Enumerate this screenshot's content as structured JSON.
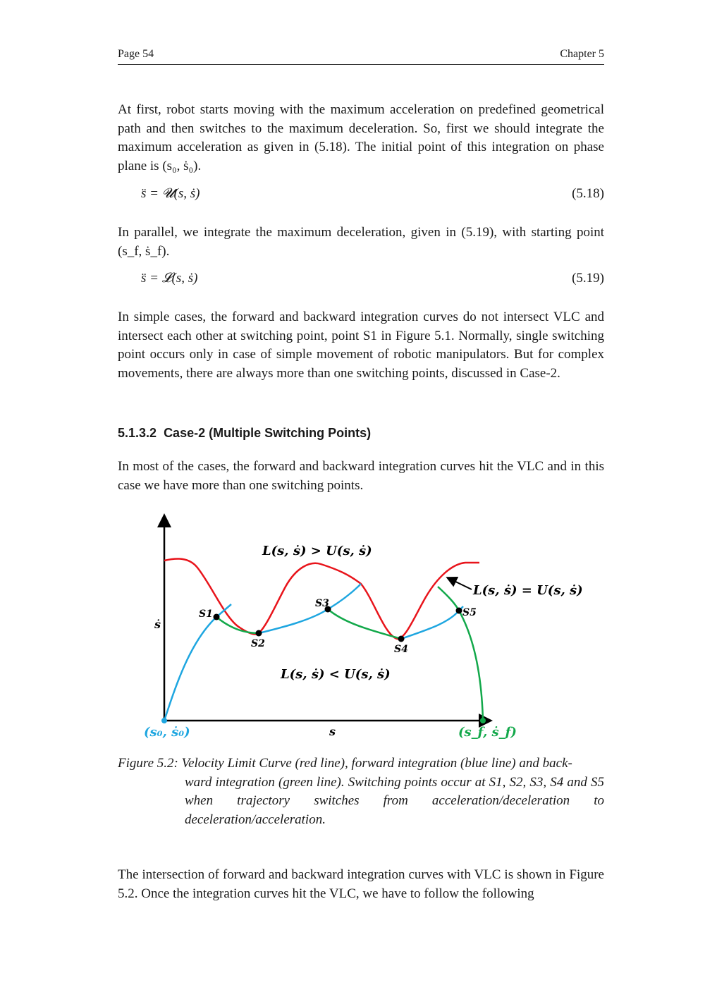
{
  "header": {
    "left": "Page 54",
    "right": "Chapter 5"
  },
  "paragraphs": [
    "At first, robot starts moving with the maximum acceleration on predefined geometrical path and then switches to the maximum deceleration. So, first we should integrate the maximum acceleration as given in (5.18). The initial point of this integration on phase plane is (s₀, ṡ₀).",
    "In parallel, we integrate the maximum deceleration, given in (5.19), with starting point (s_f, ṡ_f).",
    "In simple cases, the forward and backward integration curves do not intersect VLC and intersect each other at switching point, point S1 in Figure 5.1. Normally, single switching point occurs only in case of simple movement of robotic manipulators. But for complex movements, there are always more than one switching points, discussed in Case-2.",
    "In most of the cases, the forward and backward integration curves hit the VLC and in this case we have more than one switching points.",
    "The intersection of forward and backward integration curves with VLC is shown in Figure 5.2. Once the integration curves hit the VLC, we have to follow the following"
  ],
  "equations": [
    {
      "text": "s̈ = 𝓤(s, ṡ)",
      "number": "(5.18)"
    },
    {
      "text": "s̈ = 𝓛(s, ṡ)",
      "number": "(5.19)"
    }
  ],
  "section": {
    "number": "5.1.3.2",
    "title": "Case-2 (Multiple Switching Points)"
  },
  "figure": {
    "caption_label": "Figure 5.2:",
    "caption_line1": "Velocity Limit Curve (red line), forward integration (blue line) and back-",
    "caption_rest": "ward integration (green line). Switching points occur at S1, S2, S3, S4 and S5 when trajectory switches from acceleration/deceleration to deceleration/acceleration.",
    "region_above": "L(s, ṡ) > U(s, ṡ)",
    "region_below": "L(s, ṡ) < U(s, ṡ)",
    "vlc_label": "L(s, ṡ) = U(s, ṡ)",
    "ylabel": "ṡ",
    "xlabel": "s",
    "start_label": "(s₀, ṡ₀)",
    "end_label": "(s_f, ṡ_f)",
    "points": [
      "S1",
      "S2",
      "S3",
      "S4",
      "S5"
    ],
    "colors": {
      "vlc": "#e8141b",
      "forward": "#1ea6e0",
      "backward": "#12a84a",
      "start": "#1ea6e0",
      "end": "#12a84a"
    }
  }
}
